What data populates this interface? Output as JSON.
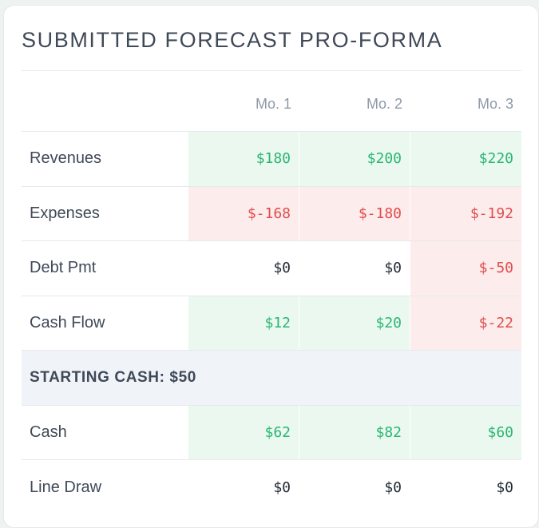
{
  "panel": {
    "title": "SUBMITTED FORECAST PRO-FORMA"
  },
  "columns": [
    "Mo. 1",
    "Mo. 2",
    "Mo. 3"
  ],
  "rows": [
    {
      "label": "Revenues",
      "values": [
        "$180",
        "$200",
        "$220"
      ],
      "tones": [
        "positive",
        "positive",
        "positive"
      ]
    },
    {
      "label": "Expenses",
      "values": [
        "$-168",
        "$-180",
        "$-192"
      ],
      "tones": [
        "negative",
        "negative",
        "negative"
      ]
    },
    {
      "label": "Debt Pmt",
      "values": [
        "$0",
        "$0",
        "$-50"
      ],
      "tones": [
        "neutral",
        "neutral",
        "negative"
      ]
    },
    {
      "label": "Cash Flow",
      "values": [
        "$12",
        "$20",
        "$-22"
      ],
      "tones": [
        "positive",
        "positive",
        "negative"
      ]
    }
  ],
  "starting_cash": {
    "label": "STARTING CASH: $50"
  },
  "rows_after": [
    {
      "label": "Cash",
      "values": [
        "$62",
        "$82",
        "$60"
      ],
      "tones": [
        "positive",
        "positive",
        "positive"
      ]
    },
    {
      "label": "Line Draw",
      "values": [
        "$0",
        "$0",
        "$0"
      ],
      "tones": [
        "neutral",
        "neutral",
        "neutral"
      ]
    }
  ],
  "colors": {
    "positive_text": "#2bb672",
    "positive_bg": "#eaf8f0",
    "negative_text": "#e24c4c",
    "negative_bg": "#fdecec",
    "section_bg": "#f0f3f8",
    "title_text": "#3f4957"
  }
}
